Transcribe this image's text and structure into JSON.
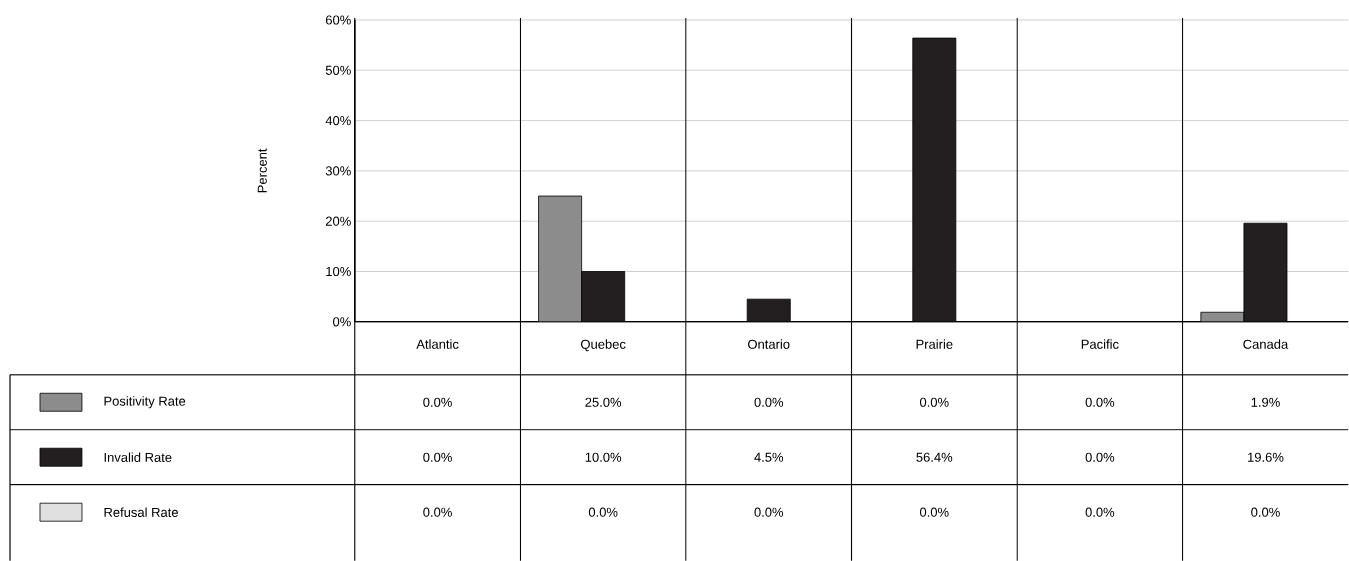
{
  "chart_data": {
    "type": "bar",
    "ylabel": "Percent",
    "categories": [
      "Atlantic",
      "Quebec",
      "Ontario",
      "Prairie",
      "Pacific",
      "Canada"
    ],
    "series": [
      {
        "name": "Positivity Rate",
        "color": "#8c8c8c",
        "values": [
          0.0,
          25.0,
          0.0,
          0.0,
          0.0,
          1.9
        ],
        "value_labels": [
          "0.0%",
          "25.0%",
          "0.0%",
          "0.0%",
          "0.0%",
          "1.9%"
        ]
      },
      {
        "name": "Invalid Rate",
        "color": "#231f20",
        "values": [
          0.0,
          10.0,
          4.5,
          56.4,
          0.0,
          19.6
        ],
        "value_labels": [
          "0.0%",
          "10.0%",
          "4.5%",
          "56.4%",
          "0.0%",
          "19.6%"
        ]
      },
      {
        "name": "Refusal Rate",
        "color": "#e0e0e0",
        "values": [
          0.0,
          0.0,
          0.0,
          0.0,
          0.0,
          0.0
        ],
        "value_labels": [
          "0.0%",
          "0.0%",
          "0.0%",
          "0.0%",
          "0.0%",
          "0.0%"
        ]
      }
    ],
    "ylim": [
      0,
      60
    ],
    "yticks": [
      {
        "value": 0,
        "label": "0%"
      },
      {
        "value": 10,
        "label": "10%"
      },
      {
        "value": 20,
        "label": "20%"
      },
      {
        "value": 30,
        "label": "30%"
      },
      {
        "value": 40,
        "label": "40%"
      },
      {
        "value": 50,
        "label": "50%"
      },
      {
        "value": 60,
        "label": "60%"
      }
    ],
    "grid": "y",
    "legend": "bottom"
  }
}
